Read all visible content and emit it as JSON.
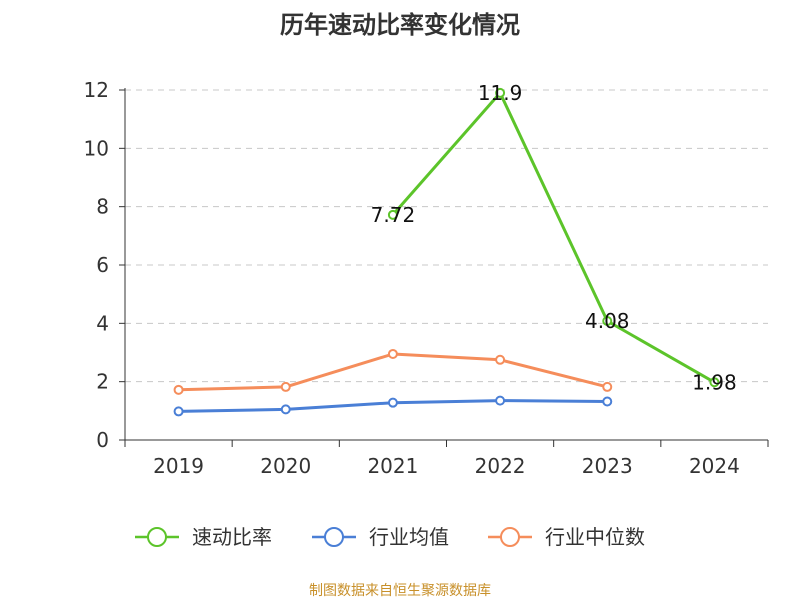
{
  "chart_data": {
    "type": "line",
    "title": "历年速动比率变化情况",
    "categories": [
      "2019",
      "2020",
      "2021",
      "2022",
      "2023",
      "2024"
    ],
    "ylim": [
      0,
      12
    ],
    "yticks": [
      0,
      2,
      4,
      6,
      8,
      10,
      12
    ],
    "grid": true,
    "legend_position": "bottom",
    "series": [
      {
        "name": "速动比率",
        "color": "#5cc42a",
        "values": [
          null,
          null,
          7.72,
          11.9,
          4.08,
          1.98
        ],
        "labels": true
      },
      {
        "name": "行业均值",
        "color": "#4a7fd6",
        "values": [
          0.98,
          1.05,
          1.28,
          1.35,
          1.32,
          null
        ],
        "labels": false
      },
      {
        "name": "行业中位数",
        "color": "#f58d5b",
        "values": [
          1.72,
          1.82,
          2.95,
          2.75,
          1.82,
          null
        ],
        "labels": false
      }
    ]
  },
  "footer": "制图数据来自恒生聚源数据库"
}
